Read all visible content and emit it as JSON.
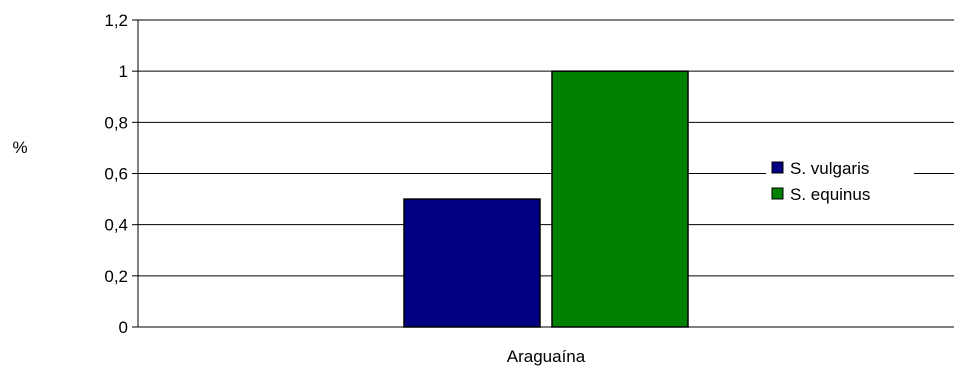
{
  "chart_data": {
    "type": "bar",
    "title": "",
    "xlabel": "",
    "ylabel": "%",
    "categories": [
      "Araguaína"
    ],
    "ylim": [
      0,
      1.2
    ],
    "yticks": [
      "0",
      "0,2",
      "0,4",
      "0,6",
      "0,8",
      "1",
      "1,2"
    ],
    "grid": true,
    "legend_position": "right",
    "series": [
      {
        "name": "S. vulgaris",
        "values": [
          0.5
        ],
        "color": "#000080"
      },
      {
        "name": "S. equinus",
        "values": [
          1.0
        ],
        "color": "#008000"
      }
    ]
  }
}
